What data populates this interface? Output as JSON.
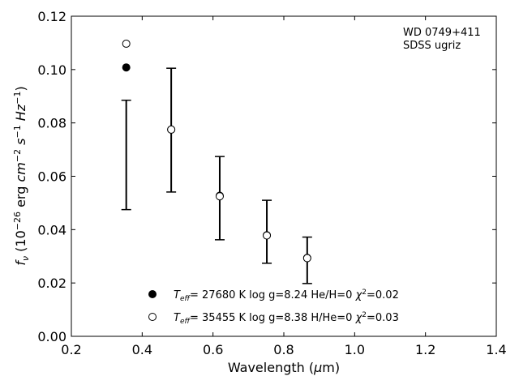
{
  "chart_data": {
    "type": "scatter",
    "title": "",
    "xlabel": "Wavelength (µm)",
    "ylabel": "f_ν (10^-26 erg cm^-2 s^-1 Hz^-1)",
    "xlim": [
      0.2,
      1.4
    ],
    "ylim": [
      0.0,
      0.12
    ],
    "xticks": [
      "0.2",
      "0.4",
      "0.6",
      "0.8",
      "1.0",
      "1.2",
      "1.4"
    ],
    "yticks": [
      "0.00",
      "0.02",
      "0.04",
      "0.06",
      "0.08",
      "0.10",
      "0.12"
    ],
    "grid": false,
    "legend_position": "bottom-center",
    "annotations": [
      "WD 0749+411",
      "SDSS ugriz"
    ],
    "observed": {
      "x": [
        0.355,
        0.482,
        0.619,
        0.752,
        0.866
      ],
      "y": [
        0.068,
        0.0773,
        0.0518,
        0.0392,
        0.0285
      ],
      "yerr": [
        0.0205,
        0.0232,
        0.0156,
        0.0118,
        0.0087
      ]
    },
    "series": [
      {
        "name": "Teff= 27680 K  log g=8.24  He/H=0  χ²=0.02",
        "marker": "filled-circle",
        "x": [
          0.355,
          0.482,
          0.619,
          0.752,
          0.866
        ],
        "y": [
          0.1008,
          0.0775,
          0.0527,
          0.0379,
          0.0294
        ]
      },
      {
        "name": "Teff= 35455 K  log g=8.38  H/He=0  χ²=0.03",
        "marker": "open-circle",
        "x": [
          0.355,
          0.482,
          0.619,
          0.752,
          0.866
        ],
        "y": [
          0.1097,
          0.0775,
          0.0525,
          0.0378,
          0.0293
        ]
      }
    ]
  },
  "legend": {
    "items": [
      {
        "t": "T",
        "sub": "eff",
        "rest": "= 27680 K  log g=8.24  He/H=0  ",
        "chi": "χ",
        "sup": "2",
        "tail": "=0.02"
      },
      {
        "t": "T",
        "sub": "eff",
        "rest": "= 35455 K  log g=8.38  H/He=0  ",
        "chi": "χ",
        "sup": "2",
        "tail": "=0.03"
      }
    ]
  },
  "labels": {
    "x_pre": "Wavelength (",
    "x_mu": "μ",
    "x_post": "m)",
    "y_f": "f",
    "y_nu": "ν",
    "y_a": " (10",
    "y_exp1": "−26",
    "y_b": " erg ",
    "y_cm": "cm",
    "y_exp2": "−2",
    "y_s": " s",
    "y_exp3": "−1",
    "y_hz": " Hz",
    "y_exp4": "−1",
    "y_c": ")"
  }
}
